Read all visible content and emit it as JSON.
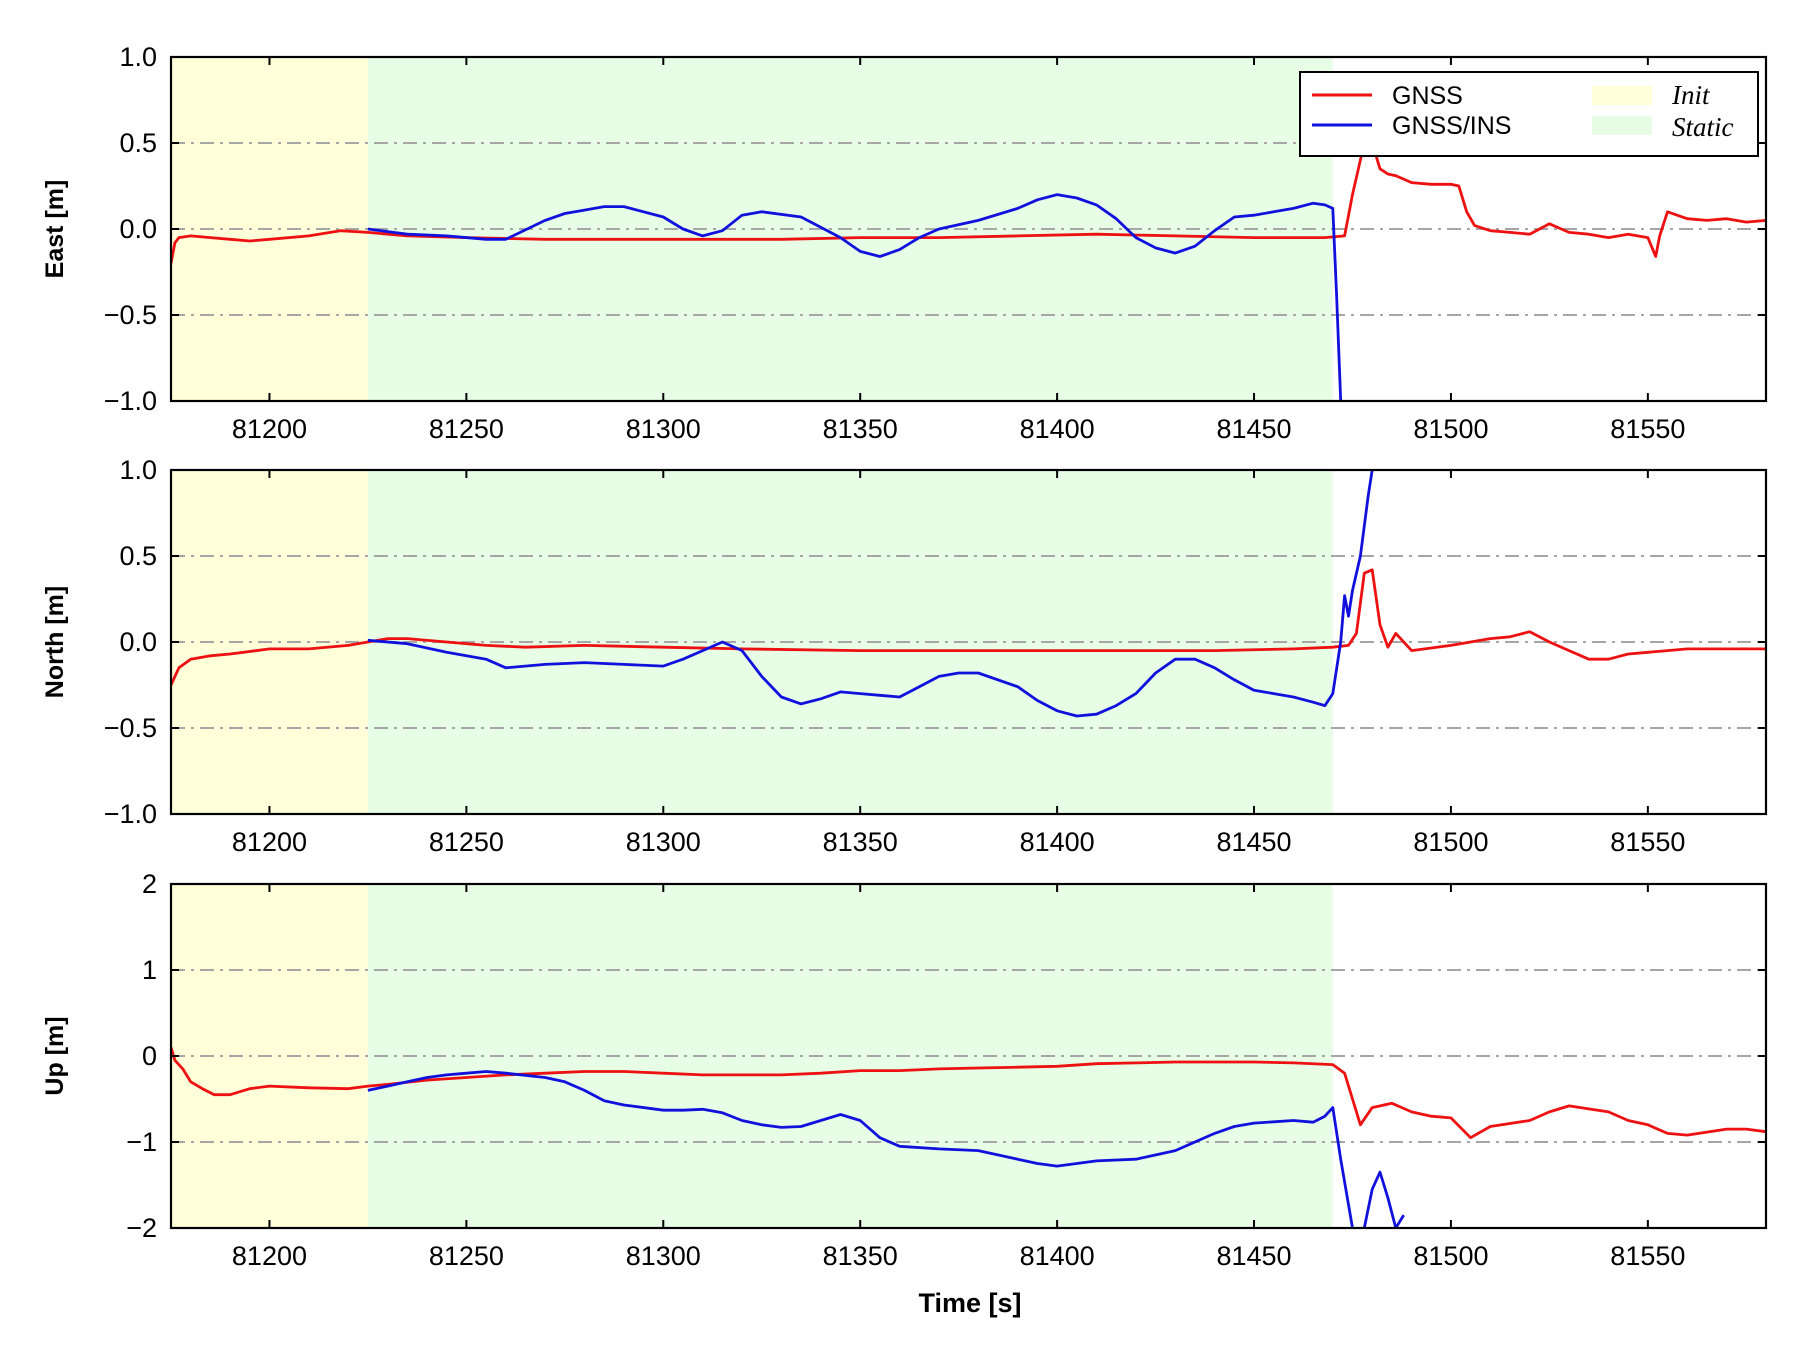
{
  "chart_data": {
    "type": "line",
    "xlabel": "Time [s]",
    "xlim": [
      81175,
      81580
    ],
    "xticks": [
      81200,
      81250,
      81300,
      81350,
      81400,
      81450,
      81500,
      81550
    ],
    "regions": [
      {
        "label": "Init",
        "x": [
          81175,
          81225
        ],
        "color": "#ffffd9"
      },
      {
        "label": "Static",
        "x": [
          81225,
          81470
        ],
        "color": "#e8fde6"
      }
    ],
    "legend": {
      "placement": "top-right",
      "entries": [
        {
          "label": "GNSS",
          "type": "line",
          "color": "#ee1111"
        },
        {
          "label": "GNSS/INS",
          "type": "line",
          "color": "#1111dd"
        },
        {
          "label": "Init",
          "type": "patch",
          "color": "#ffffd9"
        },
        {
          "label": "Static",
          "type": "patch",
          "color": "#e8fde6"
        }
      ]
    },
    "panels": [
      {
        "ylabel": "East [m]",
        "ylim": [
          -1.0,
          1.0
        ],
        "yticks": [
          -1.0,
          -0.5,
          0.0,
          0.5,
          1.0
        ],
        "yticklabels": [
          "−1.0",
          "−0.5",
          "0.0",
          "0.5",
          "1.0"
        ],
        "grid_y": [
          -0.5,
          0.0,
          0.5
        ],
        "series": [
          {
            "name": "GNSS",
            "color": "#ee1111",
            "x": [
              81175,
              81176,
              81177,
              81180,
              81185,
              81190,
              81195,
              81200,
              81210,
              81218,
              81225,
              81235,
              81250,
              81270,
              81290,
              81310,
              81330,
              81350,
              81370,
              81390,
              81410,
              81430,
              81450,
              81468,
              81473,
              81475,
              81478,
              81480,
              81482,
              81484,
              81486,
              81488,
              81490,
              81495,
              81500,
              81502,
              81504,
              81506,
              81510,
              81515,
              81520,
              81525,
              81530,
              81535,
              81540,
              81545,
              81550,
              81552,
              81553,
              81555,
              81560,
              81565,
              81570,
              81575,
              81580
            ],
            "y": [
              -0.2,
              -0.08,
              -0.05,
              -0.04,
              -0.05,
              -0.06,
              -0.07,
              -0.06,
              -0.04,
              -0.01,
              -0.02,
              -0.04,
              -0.05,
              -0.06,
              -0.06,
              -0.06,
              -0.06,
              -0.05,
              -0.05,
              -0.04,
              -0.03,
              -0.04,
              -0.05,
              -0.05,
              -0.04,
              0.2,
              0.5,
              0.5,
              0.35,
              0.32,
              0.31,
              0.29,
              0.27,
              0.26,
              0.26,
              0.25,
              0.1,
              0.02,
              -0.01,
              -0.02,
              -0.03,
              0.03,
              -0.02,
              -0.03,
              -0.05,
              -0.03,
              -0.05,
              -0.16,
              -0.04,
              0.1,
              0.06,
              0.05,
              0.06,
              0.04,
              0.05
            ]
          },
          {
            "name": "GNSS/INS",
            "color": "#1111dd",
            "x": [
              81225,
              81235,
              81245,
              81255,
              81260,
              81270,
              81275,
              81280,
              81285,
              81290,
              81300,
              81305,
              81310,
              81315,
              81320,
              81325,
              81335,
              81345,
              81350,
              81355,
              81360,
              81365,
              81370,
              81380,
              81390,
              81395,
              81400,
              81405,
              81410,
              81415,
              81420,
              81425,
              81430,
              81435,
              81440,
              81445,
              81450,
              81455,
              81460,
              81465,
              81468,
              81470,
              81471,
              81472
            ],
            "y": [
              0.0,
              -0.03,
              -0.04,
              -0.06,
              -0.06,
              0.05,
              0.09,
              0.11,
              0.13,
              0.13,
              0.07,
              0.0,
              -0.04,
              -0.01,
              0.08,
              0.1,
              0.07,
              -0.05,
              -0.13,
              -0.16,
              -0.12,
              -0.05,
              0.0,
              0.05,
              0.12,
              0.17,
              0.2,
              0.18,
              0.14,
              0.06,
              -0.05,
              -0.11,
              -0.14,
              -0.1,
              -0.01,
              0.07,
              0.08,
              0.1,
              0.12,
              0.15,
              0.14,
              0.12,
              -0.4,
              -1.0
            ]
          }
        ]
      },
      {
        "ylabel": "North [m]",
        "ylim": [
          -1.0,
          1.0
        ],
        "yticks": [
          -1.0,
          -0.5,
          0.0,
          0.5,
          1.0
        ],
        "yticklabels": [
          "−1.0",
          "−0.5",
          "0.0",
          "0.5",
          "1.0"
        ],
        "grid_y": [
          -0.5,
          0.0,
          0.5
        ],
        "series": [
          {
            "name": "GNSS",
            "color": "#ee1111",
            "x": [
              81175,
              81177,
              81180,
              81185,
              81190,
              81200,
              81210,
              81220,
              81225,
              81230,
              81235,
              81245,
              81255,
              81265,
              81280,
              81300,
              81320,
              81350,
              81380,
              81410,
              81440,
              81460,
              81470,
              81474,
              81476,
              81478,
              81480,
              81482,
              81484,
              81486,
              81490,
              81500,
              81510,
              81515,
              81520,
              81525,
              81530,
              81535,
              81540,
              81545,
              81550,
              81555,
              81560,
              81570,
              81580
            ],
            "y": [
              -0.25,
              -0.15,
              -0.1,
              -0.08,
              -0.07,
              -0.04,
              -0.04,
              -0.02,
              0.0,
              0.02,
              0.02,
              0.0,
              -0.02,
              -0.03,
              -0.02,
              -0.03,
              -0.04,
              -0.05,
              -0.05,
              -0.05,
              -0.05,
              -0.04,
              -0.03,
              -0.02,
              0.05,
              0.4,
              0.42,
              0.1,
              -0.03,
              0.05,
              -0.05,
              -0.02,
              0.02,
              0.03,
              0.06,
              0.0,
              -0.05,
              -0.1,
              -0.1,
              -0.07,
              -0.06,
              -0.05,
              -0.04,
              -0.04,
              -0.04
            ]
          },
          {
            "name": "GNSS/INS",
            "color": "#1111dd",
            "x": [
              81225,
              81235,
              81245,
              81255,
              81260,
              81270,
              81280,
              81290,
              81300,
              81305,
              81310,
              81315,
              81320,
              81325,
              81330,
              81335,
              81340,
              81345,
              81350,
              81355,
              81360,
              81365,
              81370,
              81375,
              81380,
              81390,
              81395,
              81400,
              81405,
              81410,
              81415,
              81420,
              81425,
              81430,
              81435,
              81440,
              81445,
              81450,
              81455,
              81460,
              81465,
              81468,
              81470,
              81472,
              81473,
              81474,
              81475,
              81477,
              81479,
              81480
            ],
            "y": [
              0.01,
              -0.01,
              -0.06,
              -0.1,
              -0.15,
              -0.13,
              -0.12,
              -0.13,
              -0.14,
              -0.1,
              -0.05,
              0.0,
              -0.05,
              -0.2,
              -0.32,
              -0.36,
              -0.33,
              -0.29,
              -0.3,
              -0.31,
              -0.32,
              -0.26,
              -0.2,
              -0.18,
              -0.18,
              -0.26,
              -0.34,
              -0.4,
              -0.43,
              -0.42,
              -0.37,
              -0.3,
              -0.18,
              -0.1,
              -0.1,
              -0.15,
              -0.22,
              -0.28,
              -0.3,
              -0.32,
              -0.35,
              -0.37,
              -0.3,
              0.0,
              0.27,
              0.15,
              0.3,
              0.5,
              0.85,
              1.0
            ]
          }
        ]
      },
      {
        "ylabel": "Up [m]",
        "ylim": [
          -2,
          2
        ],
        "yticks": [
          -2,
          -1,
          0,
          1,
          2
        ],
        "yticklabels": [
          "−2",
          "−1",
          "0",
          "1",
          "2"
        ],
        "grid_y": [
          -1,
          0,
          1
        ],
        "series": [
          {
            "name": "GNSS",
            "color": "#ee1111",
            "x": [
              81175,
              81176,
              81178,
              81180,
              81183,
              81186,
              81190,
              81195,
              81200,
              81210,
              81220,
              81225,
              81230,
              81240,
              81250,
              81260,
              81270,
              81280,
              81290,
              81300,
              81310,
              81320,
              81330,
              81340,
              81350,
              81360,
              81370,
              81380,
              81390,
              81400,
              81410,
              81420,
              81430,
              81440,
              81450,
              81460,
              81470,
              81473,
              81475,
              81477,
              81480,
              81485,
              81490,
              81495,
              81500,
              81505,
              81510,
              81520,
              81525,
              81530,
              81540,
              81545,
              81550,
              81555,
              81560,
              81570,
              81575,
              81580
            ],
            "y": [
              0.1,
              -0.05,
              -0.15,
              -0.3,
              -0.38,
              -0.45,
              -0.45,
              -0.38,
              -0.35,
              -0.37,
              -0.38,
              -0.35,
              -0.33,
              -0.28,
              -0.25,
              -0.22,
              -0.2,
              -0.18,
              -0.18,
              -0.2,
              -0.22,
              -0.22,
              -0.22,
              -0.2,
              -0.17,
              -0.17,
              -0.15,
              -0.14,
              -0.13,
              -0.12,
              -0.09,
              -0.08,
              -0.07,
              -0.07,
              -0.07,
              -0.08,
              -0.1,
              -0.2,
              -0.5,
              -0.8,
              -0.6,
              -0.55,
              -0.65,
              -0.7,
              -0.72,
              -0.95,
              -0.82,
              -0.75,
              -0.65,
              -0.58,
              -0.65,
              -0.75,
              -0.8,
              -0.9,
              -0.92,
              -0.85,
              -0.85,
              -0.88
            ]
          },
          {
            "name": "GNSS/INS",
            "color": "#1111dd",
            "x": [
              81225,
              81230,
              81235,
              81240,
              81245,
              81250,
              81255,
              81260,
              81270,
              81275,
              81280,
              81285,
              81290,
              81300,
              81305,
              81310,
              81315,
              81320,
              81325,
              81330,
              81335,
              81340,
              81345,
              81350,
              81355,
              81360,
              81370,
              81380,
              81390,
              81395,
              81400,
              81410,
              81420,
              81430,
              81440,
              81445,
              81450,
              81460,
              81465,
              81468,
              81470,
              81472,
              81475
            ],
            "y": [
              -0.4,
              -0.35,
              -0.3,
              -0.25,
              -0.22,
              -0.2,
              -0.18,
              -0.2,
              -0.25,
              -0.3,
              -0.4,
              -0.52,
              -0.57,
              -0.63,
              -0.63,
              -0.62,
              -0.66,
              -0.75,
              -0.8,
              -0.83,
              -0.82,
              -0.75,
              -0.68,
              -0.75,
              -0.95,
              -1.05,
              -1.08,
              -1.1,
              -1.2,
              -1.25,
              -1.28,
              -1.22,
              -1.2,
              -1.1,
              -0.9,
              -0.82,
              -0.78,
              -0.75,
              -0.77,
              -0.7,
              -0.6,
              -1.2,
              -2.0
            ]
          },
          {
            "name": "GNSS/INS",
            "color": "#1111dd",
            "x": [
              81478,
              81480,
              81482,
              81484,
              81486,
              81488
            ],
            "y": [
              -2.0,
              -1.55,
              -1.35,
              -1.65,
              -2.0,
              -1.85
            ]
          }
        ]
      }
    ]
  }
}
